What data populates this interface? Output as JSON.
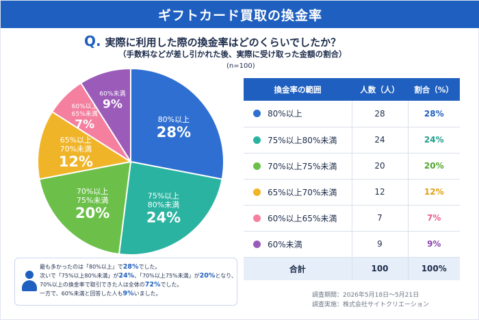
{
  "header": {
    "title": "ギフトカード買取の換金率"
  },
  "question": {
    "mark": "Q.",
    "text": "実際に利用した際の換金率はどのくらいでしたか？",
    "sub": "（手数料などが差し引かれた後、実際に受け取った金額の割合）",
    "n": "(n=100)"
  },
  "chart_data": {
    "type": "pie",
    "slices": [
      {
        "label_line1": "80%以上",
        "label_line2": "",
        "value": 28,
        "display": "28%",
        "color": "#2f6fd1"
      },
      {
        "label_line1": "75%以上",
        "label_line2": "80%未満",
        "value": 24,
        "display": "24%",
        "color": "#2bb3a1"
      },
      {
        "label_line1": "70%以上",
        "label_line2": "75%未満",
        "value": 20,
        "display": "20%",
        "color": "#6cc04a"
      },
      {
        "label_line1": "65%以上",
        "label_line2": "70%未満",
        "value": 12,
        "display": "12%",
        "color": "#f0b428"
      },
      {
        "label_line1": "60%以上",
        "label_line2": "65%未満",
        "value": 7,
        "display": "7%",
        "color": "#f47f9f"
      },
      {
        "label_line1": "60%未満",
        "label_line2": "",
        "value": 9,
        "display": "9%",
        "color": "#9a5bb9"
      }
    ]
  },
  "table": {
    "headers": [
      "換金率の範囲",
      "人数（人）",
      "割合（%）"
    ],
    "rows": [
      {
        "range": "80%以上",
        "count": "28",
        "pct": "28%",
        "color": "#2f6fd1",
        "pct_color": "#1f5fbf"
      },
      {
        "range": "75%以上80%未満",
        "count": "24",
        "pct": "24%",
        "color": "#2bb3a1",
        "pct_color": "#1f9d8c"
      },
      {
        "range": "70%以上75%未満",
        "count": "20",
        "pct": "20%",
        "color": "#6cc04a",
        "pct_color": "#4fa52e"
      },
      {
        "range": "65%以上70%未満",
        "count": "12",
        "pct": "12%",
        "color": "#f0b428",
        "pct_color": "#e0a010"
      },
      {
        "range": "60%以上65%未満",
        "count": "7",
        "pct": "7%",
        "color": "#f47f9f",
        "pct_color": "#e8608a"
      },
      {
        "range": "60%未満",
        "count": "9",
        "pct": "9%",
        "color": "#9a5bb9",
        "pct_color": "#8a44ab"
      }
    ],
    "total": {
      "label": "合計",
      "count": "100",
      "pct": "100%"
    }
  },
  "note": {
    "l1a": "最も多かったのは「80%以上」で",
    "l1h": "28%",
    "l1b": "でした。",
    "l2a": "次いで「75%以上80%未満」が",
    "l2h": "24%",
    "l2b": "、「70%以上75%未満」が",
    "l2h2": "20%",
    "l2c": "となり、",
    "l3a": "70%以上の換金率で取引できた人は全体の",
    "l3h": "72%",
    "l3b": "でした。",
    "l4a": "一方で、60%未満と回答した人も",
    "l4h": "9%",
    "l4b": "いました。"
  },
  "footer": {
    "period": "調査期間：2026年5月18日〜5月21日",
    "org": "調査実施：株式会社サイトクリエーション"
  }
}
